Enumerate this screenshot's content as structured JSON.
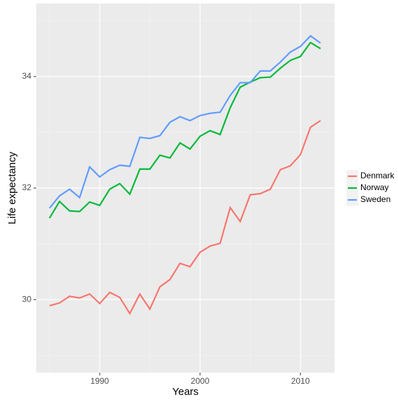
{
  "chart_data": {
    "type": "line",
    "x_label": "Years",
    "y_label": "Life expectancy",
    "x": [
      1985,
      1986,
      1987,
      1988,
      1989,
      1990,
      1991,
      1992,
      1993,
      1994,
      1995,
      1996,
      1997,
      1998,
      1999,
      2000,
      2001,
      2002,
      2003,
      2004,
      2005,
      2006,
      2007,
      2008,
      2009,
      2010,
      2011,
      2012
    ],
    "series": [
      {
        "name": "Denmark",
        "color": "#f8766d",
        "values": [
          29.89,
          29.94,
          30.06,
          30.03,
          30.1,
          29.93,
          30.13,
          30.04,
          29.75,
          30.1,
          29.83,
          30.23,
          30.36,
          30.65,
          30.59,
          30.85,
          30.96,
          31.01,
          31.65,
          31.4,
          31.88,
          31.9,
          31.98,
          32.33,
          32.4,
          32.6,
          33.09,
          33.21
        ]
      },
      {
        "name": "Norway",
        "color": "#00ba38",
        "values": [
          31.46,
          31.76,
          31.59,
          31.58,
          31.75,
          31.69,
          31.98,
          32.08,
          31.89,
          32.34,
          32.34,
          32.59,
          32.54,
          32.81,
          32.7,
          32.93,
          33.03,
          32.96,
          33.44,
          33.81,
          33.9,
          33.98,
          33.99,
          34.15,
          34.29,
          34.36,
          34.61,
          34.5
        ]
      },
      {
        "name": "Sweden",
        "color": "#619cff",
        "values": [
          31.64,
          31.86,
          31.98,
          31.83,
          32.38,
          32.2,
          32.33,
          32.41,
          32.39,
          32.91,
          32.89,
          32.94,
          33.18,
          33.28,
          33.21,
          33.3,
          33.34,
          33.36,
          33.66,
          33.89,
          33.89,
          34.1,
          34.1,
          34.26,
          34.44,
          34.54,
          34.73,
          34.6
        ]
      }
    ],
    "xlim": [
      1983.68,
      2013.4
    ],
    "xticks": [
      1990,
      2000,
      2010
    ],
    "ylim": [
      28.69,
      35.31
    ],
    "yticks": [
      30,
      32,
      34
    ],
    "grid": true,
    "legend": "right"
  }
}
